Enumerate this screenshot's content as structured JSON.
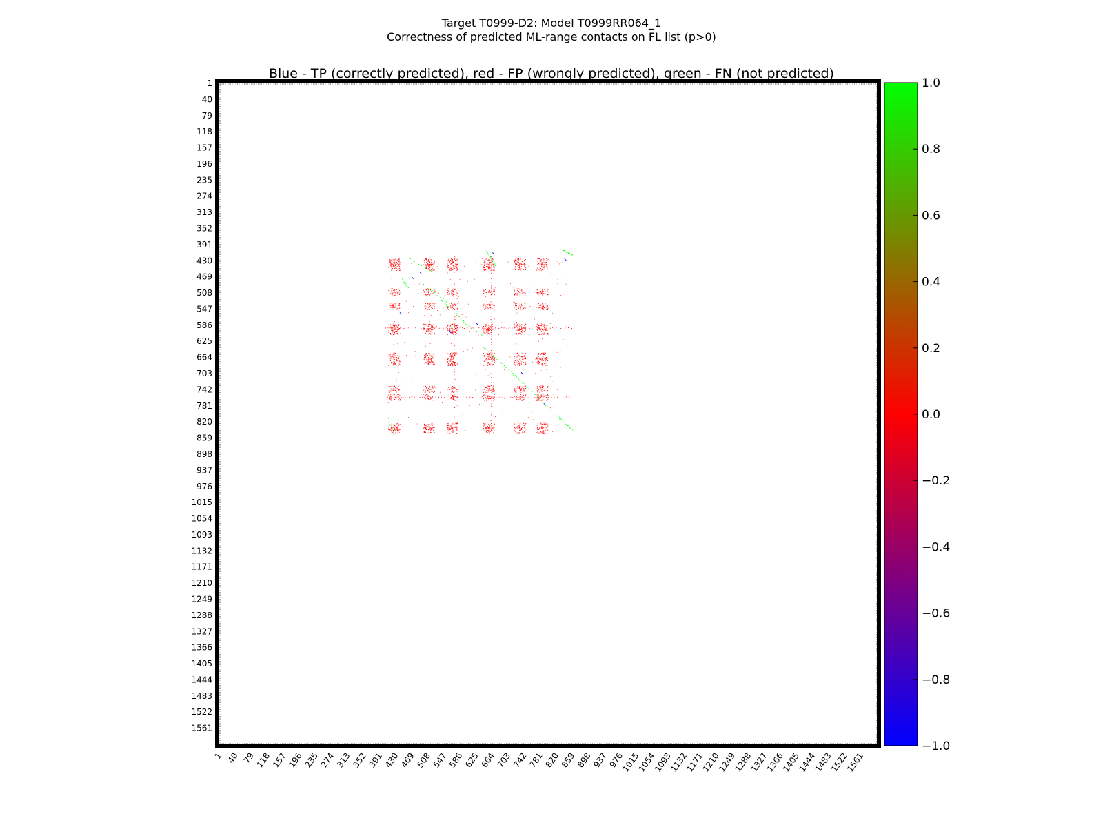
{
  "figure": {
    "suptitle_line1": "Target T0999-D2: Model T0999RR064_1",
    "suptitle_line2": "Correctness of predicted ML-range contacts on FL list (p>0)"
  },
  "chart_data": {
    "type": "heatmap",
    "title": "Blue - TP (correctly predicted), red - FP (wrongly predicted), green - FN (not predicted)",
    "xlabel": "",
    "ylabel": "",
    "xlim": [
      1,
      1600
    ],
    "ylim": [
      1,
      1600
    ],
    "y_inverted": true,
    "ticks": [
      "1",
      "40",
      "79",
      "118",
      "157",
      "196",
      "235",
      "274",
      "313",
      "352",
      "391",
      "430",
      "469",
      "508",
      "547",
      "586",
      "625",
      "664",
      "703",
      "742",
      "781",
      "820",
      "859",
      "898",
      "937",
      "976",
      "1015",
      "1054",
      "1093",
      "1132",
      "1171",
      "1210",
      "1249",
      "1288",
      "1327",
      "1366",
      "1405",
      "1444",
      "1483",
      "1522",
      "1561"
    ],
    "colorbar": {
      "min": -1.0,
      "max": 1.0,
      "ticks": [
        "1.0",
        "0.8",
        "0.6",
        "0.4",
        "0.2",
        "0.0",
        "−0.2",
        "−0.4",
        "−0.6",
        "−0.8",
        "−1.0"
      ],
      "colors": [
        "#0000ff",
        "#ff0000",
        "#00ff00"
      ]
    },
    "contact_region": [
      400,
      880
    ],
    "block_positions": [
      420,
      432,
      505,
      516,
      562,
      572,
      650,
      662,
      725,
      738,
      780,
      792
    ],
    "row_positions": [
      432,
      445,
      505,
      540,
      590,
      600,
      660,
      675,
      740,
      760,
      830,
      840
    ],
    "fp_stripe_rows": [
      592,
      760
    ],
    "fp_stripe_cols": [
      572,
      662
    ],
    "fn_traces": [
      {
        "x": [
          465,
          525
        ],
        "y": [
          425,
          460
        ]
      },
      {
        "x": [
          490,
          560
        ],
        "y": [
          480,
          535
        ]
      },
      {
        "x": [
          540,
          600
        ],
        "y": [
          525,
          580
        ]
      },
      {
        "x": [
          590,
          640
        ],
        "y": [
          575,
          610
        ]
      },
      {
        "x": [
          645,
          700
        ],
        "y": [
          640,
          690
        ]
      },
      {
        "x": [
          700,
          760
        ],
        "y": [
          690,
          745
        ]
      },
      {
        "x": [
          760,
          830
        ],
        "y": [
          745,
          815
        ]
      },
      {
        "x": [
          820,
          860
        ],
        "y": [
          800,
          840
        ]
      },
      {
        "x": [
          410,
          425
        ],
        "y": [
          810,
          850
        ]
      },
      {
        "x": [
          830,
          860
        ],
        "y": [
          400,
          415
        ]
      },
      {
        "x": [
          650,
          670
        ],
        "y": [
          405,
          440
        ]
      },
      {
        "x": [
          445,
          460
        ],
        "y": [
          475,
          495
        ]
      }
    ],
    "tp_points": [
      {
        "x": 470,
        "y": 470
      },
      {
        "x": 489,
        "y": 458
      },
      {
        "x": 665,
        "y": 410
      },
      {
        "x": 735,
        "y": 700
      },
      {
        "x": 790,
        "y": 775
      },
      {
        "x": 560,
        "y": 600
      },
      {
        "x": 625,
        "y": 580
      },
      {
        "x": 840,
        "y": 425
      },
      {
        "x": 440,
        "y": 555
      }
    ]
  }
}
